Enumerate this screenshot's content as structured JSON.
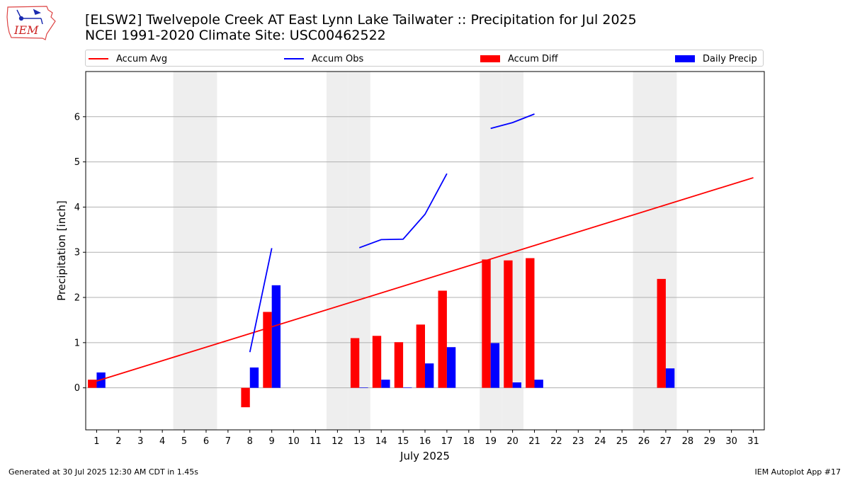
{
  "header": {
    "line1": "[ELSW2] Twelvepole Creek  AT East Lynn Lake Tailwater :: Precipitation for Jul 2025",
    "line2": "NCEI 1991-2020 Climate Site: USC00462522"
  },
  "logo": {
    "text": "IEM",
    "icon": "iem-iowa-logo"
  },
  "footer": {
    "left": "Generated at 30 Jul 2025 12:30 AM CDT in 1.45s",
    "right": "IEM Autoplot App #17"
  },
  "colors": {
    "avg": "#ff0000",
    "obs": "#0000ff",
    "diff": "#ff0000",
    "daily": "#0000ff",
    "weekend": "#eeeeee",
    "grid": "#b0b0b0"
  },
  "chart_data": {
    "type": "bar",
    "xlabel": "July 2025",
    "ylabel": "Precipitation [inch]",
    "xlim": [
      0.5,
      31.5
    ],
    "ylim": [
      -0.93,
      7.0
    ],
    "yticks": [
      0,
      1,
      2,
      3,
      4,
      5,
      6
    ],
    "x": [
      1,
      2,
      3,
      4,
      5,
      6,
      7,
      8,
      9,
      10,
      11,
      12,
      13,
      14,
      15,
      16,
      17,
      18,
      19,
      20,
      21,
      22,
      23,
      24,
      25,
      26,
      27,
      28,
      29,
      30,
      31
    ],
    "weekend_days": [
      5,
      6,
      12,
      13,
      19,
      20,
      26,
      27
    ],
    "grid": true,
    "legend_position": "top",
    "series": [
      {
        "name": "Accum Avg",
        "kind": "line",
        "color": "#ff0000",
        "x": [
          1,
          31
        ],
        "y": [
          0.15,
          4.65
        ]
      },
      {
        "name": "Accum Obs",
        "kind": "line",
        "color": "#0000ff",
        "segments": [
          {
            "x": [
              8,
              9
            ],
            "y": [
              0.79,
              3.09
            ]
          },
          {
            "x": [
              13,
              14,
              15,
              16,
              17
            ],
            "y": [
              3.1,
              3.28,
              3.29,
              3.84,
              4.74
            ]
          },
          {
            "x": [
              19,
              20,
              21
            ],
            "y": [
              5.74,
              5.87,
              6.06
            ]
          }
        ]
      },
      {
        "name": "Accum Diff",
        "kind": "bar",
        "color": "#ff0000",
        "x": [
          1,
          8,
          9,
          13,
          14,
          15,
          16,
          17,
          19,
          20,
          21,
          27
        ],
        "y": [
          0.18,
          -0.43,
          1.68,
          1.1,
          1.15,
          1.01,
          1.4,
          2.15,
          2.84,
          2.82,
          2.87,
          2.41
        ]
      },
      {
        "name": "Daily Precip",
        "kind": "bar",
        "color": "#0000ff",
        "x": [
          1,
          8,
          9,
          13,
          14,
          15,
          16,
          17,
          19,
          20,
          21,
          27
        ],
        "y": [
          0.34,
          0.45,
          2.27,
          0.01,
          0.18,
          0.01,
          0.54,
          0.9,
          0.99,
          0.12,
          0.18,
          0.43
        ]
      }
    ]
  }
}
